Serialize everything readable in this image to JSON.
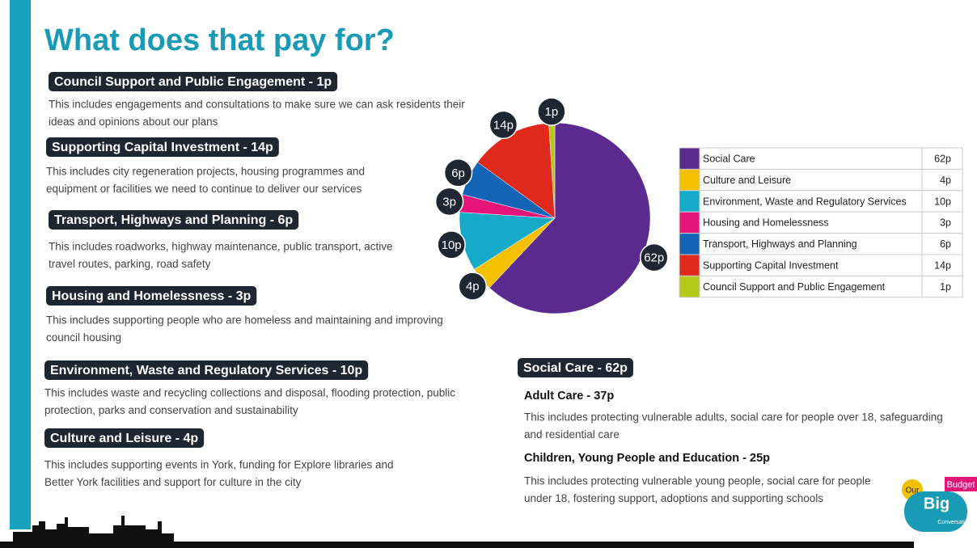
{
  "title": "What does that pay for?",
  "sections": [
    {
      "heading": "Council Support and Public Engagement - 1p",
      "body": [
        "This includes engagements and consultations to make sure we can ask residents their",
        "ideas and opinions about our plans"
      ]
    },
    {
      "heading": "Supporting Capital Investment - 14p",
      "body": [
        "This includes city regeneration projects, housing programmes and",
        "equipment or facilities we need to continue to deliver our services"
      ]
    },
    {
      "heading": "Transport, Highways and Planning  - 6p",
      "body": [
        "This includes roadworks, highway maintenance, public transport, active",
        "travel routes, parking, road safety"
      ]
    },
    {
      "heading": "Housing and Homelessness - 3p",
      "body": [
        "This includes supporting people who are homeless and maintaining and improving",
        "council housing"
      ]
    },
    {
      "heading": "Environment, Waste and Regulatory Services - 10p",
      "body": [
        "This includes waste and recycling collections and disposal, flooding protection, public",
        "protection, parks and conservation and sustainability"
      ]
    },
    {
      "heading": "Culture and Leisure - 4p",
      "body": [
        "This includes supporting events in York, funding for Explore libraries and",
        "Better York facilities and support for culture in the city"
      ]
    }
  ],
  "social_care": {
    "heading": "Social Care - 62p",
    "subsections": [
      {
        "heading": "Adult Care - 37p",
        "body": [
          "This includes protecting vulnerable adults, social care for people over 18, safeguarding",
          "and residential care"
        ]
      },
      {
        "heading": "Children, Young People and Education - 25p",
        "body": [
          "This includes protecting vulnerable young people, social care for people",
          "under 18, fostering support, adoptions and supporting schools"
        ]
      }
    ]
  },
  "logo": [
    "Our",
    "Big",
    "Budget",
    "Conversation"
  ],
  "chart_data": {
    "type": "pie",
    "categories": [
      "Social Care",
      "Culture and Leisure",
      "Environment, Waste and Regulatory Services",
      "Housing and Homelessness",
      "Transport, Highways and Planning",
      "Supporting Capital Investment",
      "Council Support and Public Engagement"
    ],
    "values": [
      62,
      4,
      10,
      3,
      6,
      14,
      1
    ],
    "value_labels": [
      "62p",
      "4p",
      "10p",
      "3p",
      "6p",
      "14p",
      "1p"
    ],
    "colors": [
      "#5b2a8e",
      "#f4c000",
      "#14aac8",
      "#e5147b",
      "#1565b7",
      "#e0291d",
      "#b3c817"
    ]
  }
}
